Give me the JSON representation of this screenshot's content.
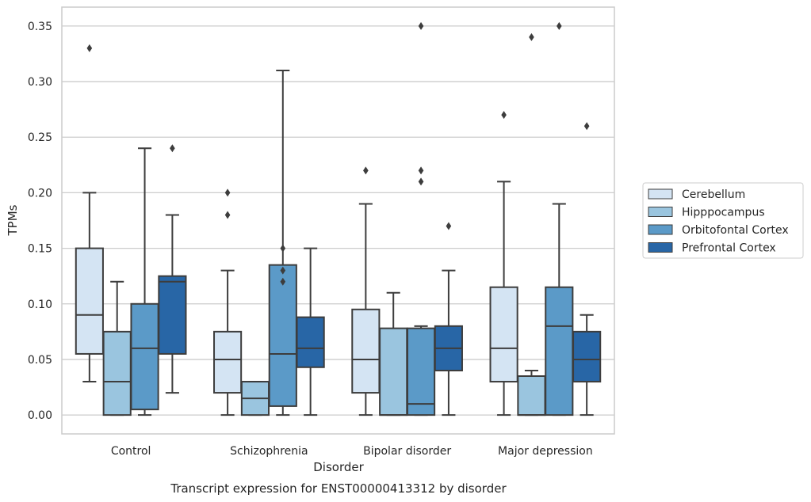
{
  "chart_data": {
    "type": "box",
    "title": "",
    "caption": "Transcript expression for ENST00000413312 by disorder",
    "xlabel": "Disorder",
    "ylabel": "TPMs",
    "ylim": [
      -0.017,
      0.367
    ],
    "yticks": [
      0.0,
      0.05,
      0.1,
      0.15,
      0.2,
      0.25,
      0.3,
      0.35
    ],
    "ytick_labels": [
      "0.00",
      "0.05",
      "0.10",
      "0.15",
      "0.20",
      "0.25",
      "0.30",
      "0.35"
    ],
    "grid": "horizontal",
    "legend_position": "right",
    "categories": [
      "Control",
      "Schizophrenia",
      "Bipolar disorder",
      "Major depression"
    ],
    "series": [
      {
        "name": "Cerebellum",
        "color": "#d4e4f3",
        "boxes": [
          {
            "whisker_low": 0.03,
            "q1": 0.055,
            "median": 0.09,
            "q3": 0.15,
            "whisker_high": 0.2,
            "outliers": [
              0.33
            ]
          },
          {
            "whisker_low": 0.0,
            "q1": 0.02,
            "median": 0.05,
            "q3": 0.075,
            "whisker_high": 0.13,
            "outliers": [
              0.18,
              0.2
            ]
          },
          {
            "whisker_low": 0.0,
            "q1": 0.02,
            "median": 0.05,
            "q3": 0.095,
            "whisker_high": 0.19,
            "outliers": [
              0.22
            ]
          },
          {
            "whisker_low": 0.0,
            "q1": 0.03,
            "median": 0.06,
            "q3": 0.115,
            "whisker_high": 0.21,
            "outliers": [
              0.27
            ]
          }
        ]
      },
      {
        "name": "Hipppocampus",
        "color": "#9ac5df",
        "boxes": [
          {
            "whisker_low": 0.0,
            "q1": 0.0,
            "median": 0.03,
            "q3": 0.075,
            "whisker_high": 0.12,
            "outliers": []
          },
          {
            "whisker_low": 0.0,
            "q1": 0.0,
            "median": 0.015,
            "q3": 0.03,
            "whisker_high": 0.03,
            "outliers": []
          },
          {
            "whisker_low": 0.0,
            "q1": 0.0,
            "median": 0.0,
            "q3": 0.078,
            "whisker_high": 0.11,
            "outliers": []
          },
          {
            "whisker_low": 0.0,
            "q1": 0.0,
            "median": 0.0,
            "q3": 0.035,
            "whisker_high": 0.04,
            "outliers": [
              0.34
            ]
          }
        ]
      },
      {
        "name": "Orbitofontal Cortex",
        "color": "#5b9ac8",
        "boxes": [
          {
            "whisker_low": 0.0,
            "q1": 0.005,
            "median": 0.06,
            "q3": 0.1,
            "whisker_high": 0.24,
            "outliers": []
          },
          {
            "whisker_low": 0.0,
            "q1": 0.008,
            "median": 0.055,
            "q3": 0.135,
            "whisker_high": 0.31,
            "outliers": [
              0.12,
              0.13,
              0.15
            ]
          },
          {
            "whisker_low": 0.0,
            "q1": 0.0,
            "median": 0.01,
            "q3": 0.078,
            "whisker_high": 0.08,
            "outliers": [
              0.21,
              0.22,
              0.35
            ]
          },
          {
            "whisker_low": 0.0,
            "q1": 0.0,
            "median": 0.08,
            "q3": 0.115,
            "whisker_high": 0.19,
            "outliers": [
              0.35
            ]
          }
        ]
      },
      {
        "name": "Prefrontal Cortex",
        "color": "#2866a6",
        "boxes": [
          {
            "whisker_low": 0.02,
            "q1": 0.055,
            "median": 0.12,
            "q3": 0.125,
            "whisker_high": 0.18,
            "outliers": [
              0.24
            ]
          },
          {
            "whisker_low": 0.0,
            "q1": 0.043,
            "median": 0.06,
            "q3": 0.088,
            "whisker_high": 0.15,
            "outliers": []
          },
          {
            "whisker_low": 0.0,
            "q1": 0.04,
            "median": 0.06,
            "q3": 0.08,
            "whisker_high": 0.13,
            "outliers": [
              0.17
            ]
          },
          {
            "whisker_low": 0.0,
            "q1": 0.03,
            "median": 0.05,
            "q3": 0.075,
            "whisker_high": 0.09,
            "outliers": [
              0.26
            ]
          }
        ]
      }
    ]
  }
}
